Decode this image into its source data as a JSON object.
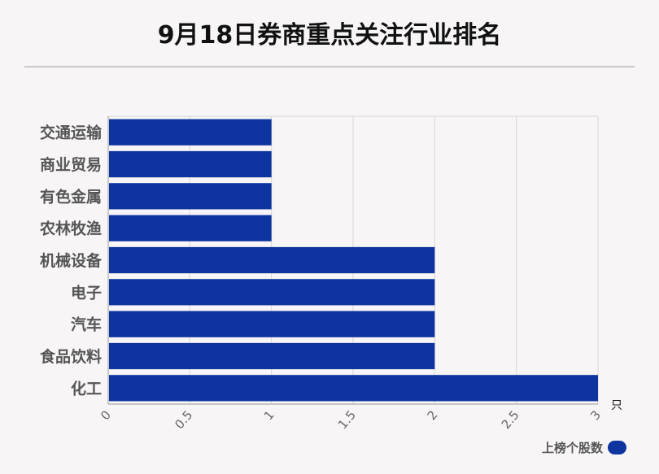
{
  "title": "9月18日券商重点关注行业排名",
  "chart_data": {
    "type": "bar",
    "orientation": "horizontal",
    "categories": [
      "交通运输",
      "商业贸易",
      "有色金属",
      "农林牧渔",
      "机械设备",
      "电子",
      "汽车",
      "食品饮料",
      "化工"
    ],
    "series": [
      {
        "name": "上榜个股数",
        "values": [
          1,
          1,
          1,
          1,
          2,
          2,
          2,
          2,
          3
        ]
      }
    ],
    "xlim": [
      0,
      3
    ],
    "x_ticks": [
      "0",
      "0.5",
      "1",
      "1.5",
      "2",
      "2.5",
      "3"
    ],
    "x_unit": "只",
    "grid": true,
    "legend_position": "bottom-right",
    "bar_color": "#0d349f"
  }
}
